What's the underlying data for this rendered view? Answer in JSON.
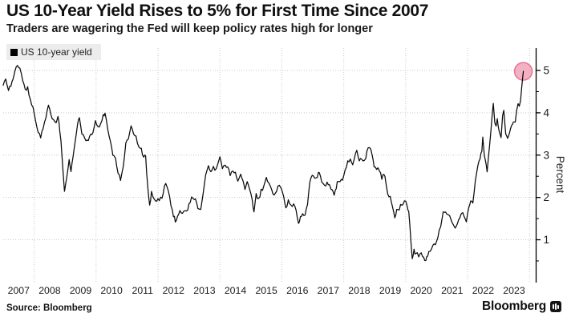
{
  "header": {
    "title": "US 10-Year Yield Rises to 5% for First Time Since 2007",
    "subtitle": "Traders are wagering the Fed will keep policy rates high for longer"
  },
  "legend": {
    "label": "US 10-year yield",
    "marker_color": "#000000"
  },
  "footer": {
    "source_label": "Source: Bloomberg",
    "brand_label": "Bloomberg"
  },
  "colors": {
    "line": "#0a0a0a",
    "grid": "#c9c9c9",
    "axis": "#000000",
    "tick_text": "#1a1a1a",
    "highlight_fill": "#ef9cb2",
    "highlight_stroke": "#e0648a"
  },
  "chart_data": {
    "type": "line",
    "title": "US 10-Year Yield Rises to 5% for First Time Since 2007",
    "subtitle": "Traders are wagering the Fed will keep policy rates high for longer",
    "ylabel": "Percent",
    "xlabel": "",
    "grid": true,
    "legend_position": "top-left",
    "legend_entries": [
      "US 10-year yield"
    ],
    "x_range": [
      2007,
      2024.2
    ],
    "y_range": [
      0,
      5.53
    ],
    "y_ticks_major": [
      1,
      2,
      3,
      4,
      5
    ],
    "y_ticks_minor": [
      0.5,
      1.5,
      2.5,
      3.5,
      4.5
    ],
    "x_tick_labels": [
      "2007",
      "2008",
      "2009",
      "2010",
      "2011",
      "2012",
      "2013",
      "2014",
      "2015",
      "2016",
      "2017",
      "2018",
      "2019",
      "2020",
      "2021",
      "2022",
      "2023"
    ],
    "x_gridline_years": [
      2008,
      2010,
      2012,
      2014,
      2016,
      2018,
      2020,
      2022,
      2024
    ],
    "highlight_point": {
      "x": 2023.8,
      "y": 4.98
    },
    "series": [
      {
        "name": "US 10-year yield",
        "color": "#000000",
        "points": [
          [
            2007.0,
            4.65
          ],
          [
            2007.08,
            4.78
          ],
          [
            2007.17,
            4.55
          ],
          [
            2007.25,
            4.66
          ],
          [
            2007.38,
            4.95
          ],
          [
            2007.46,
            5.15
          ],
          [
            2007.54,
            5.03
          ],
          [
            2007.63,
            4.75
          ],
          [
            2007.71,
            4.52
          ],
          [
            2007.79,
            4.63
          ],
          [
            2007.88,
            4.28
          ],
          [
            2007.96,
            4.1
          ],
          [
            2008.04,
            3.85
          ],
          [
            2008.13,
            3.55
          ],
          [
            2008.21,
            3.45
          ],
          [
            2008.29,
            3.6
          ],
          [
            2008.38,
            3.88
          ],
          [
            2008.46,
            4.15
          ],
          [
            2008.54,
            3.95
          ],
          [
            2008.63,
            3.85
          ],
          [
            2008.71,
            3.72
          ],
          [
            2008.77,
            3.9
          ],
          [
            2008.83,
            3.65
          ],
          [
            2008.9,
            2.95
          ],
          [
            2008.98,
            2.1
          ],
          [
            2009.06,
            2.48
          ],
          [
            2009.13,
            2.85
          ],
          [
            2009.19,
            2.62
          ],
          [
            2009.29,
            3.1
          ],
          [
            2009.4,
            3.72
          ],
          [
            2009.46,
            3.88
          ],
          [
            2009.54,
            3.52
          ],
          [
            2009.63,
            3.45
          ],
          [
            2009.71,
            3.32
          ],
          [
            2009.79,
            3.45
          ],
          [
            2009.9,
            3.52
          ],
          [
            2009.98,
            3.82
          ],
          [
            2010.06,
            3.65
          ],
          [
            2010.15,
            3.72
          ],
          [
            2010.23,
            3.92
          ],
          [
            2010.29,
            3.96
          ],
          [
            2010.38,
            3.6
          ],
          [
            2010.46,
            3.3
          ],
          [
            2010.54,
            3.0
          ],
          [
            2010.63,
            2.92
          ],
          [
            2010.71,
            2.58
          ],
          [
            2010.79,
            2.42
          ],
          [
            2010.88,
            2.7
          ],
          [
            2010.96,
            3.25
          ],
          [
            2011.04,
            3.4
          ],
          [
            2011.13,
            3.7
          ],
          [
            2011.21,
            3.48
          ],
          [
            2011.29,
            3.42
          ],
          [
            2011.38,
            3.2
          ],
          [
            2011.46,
            3.12
          ],
          [
            2011.54,
            2.95
          ],
          [
            2011.6,
            2.98
          ],
          [
            2011.67,
            2.2
          ],
          [
            2011.73,
            1.78
          ],
          [
            2011.79,
            2.12
          ],
          [
            2011.88,
            1.98
          ],
          [
            2011.96,
            1.9
          ],
          [
            2012.04,
            1.96
          ],
          [
            2012.13,
            2.0
          ],
          [
            2012.21,
            2.28
          ],
          [
            2012.25,
            2.36
          ],
          [
            2012.33,
            2.18
          ],
          [
            2012.42,
            1.82
          ],
          [
            2012.5,
            1.58
          ],
          [
            2012.56,
            1.44
          ],
          [
            2012.63,
            1.56
          ],
          [
            2012.71,
            1.72
          ],
          [
            2012.79,
            1.6
          ],
          [
            2012.88,
            1.68
          ],
          [
            2012.96,
            1.74
          ],
          [
            2013.04,
            1.92
          ],
          [
            2013.13,
            2.0
          ],
          [
            2013.21,
            1.94
          ],
          [
            2013.29,
            1.72
          ],
          [
            2013.38,
            1.7
          ],
          [
            2013.46,
            2.12
          ],
          [
            2013.54,
            2.52
          ],
          [
            2013.63,
            2.73
          ],
          [
            2013.71,
            2.58
          ],
          [
            2013.79,
            2.72
          ],
          [
            2013.88,
            2.64
          ],
          [
            2013.96,
            2.88
          ],
          [
            2014.0,
            3.0
          ],
          [
            2014.08,
            2.68
          ],
          [
            2014.17,
            2.76
          ],
          [
            2014.25,
            2.72
          ],
          [
            2014.33,
            2.56
          ],
          [
            2014.42,
            2.62
          ],
          [
            2014.5,
            2.58
          ],
          [
            2014.58,
            2.42
          ],
          [
            2014.67,
            2.52
          ],
          [
            2014.75,
            2.38
          ],
          [
            2014.81,
            2.18
          ],
          [
            2014.88,
            2.34
          ],
          [
            2014.96,
            2.22
          ],
          [
            2015.04,
            1.88
          ],
          [
            2015.1,
            1.68
          ],
          [
            2015.17,
            2.08
          ],
          [
            2015.25,
            1.94
          ],
          [
            2015.33,
            2.14
          ],
          [
            2015.42,
            2.28
          ],
          [
            2015.5,
            2.45
          ],
          [
            2015.58,
            2.32
          ],
          [
            2015.67,
            2.18
          ],
          [
            2015.75,
            2.08
          ],
          [
            2015.83,
            2.18
          ],
          [
            2015.92,
            2.28
          ],
          [
            2015.98,
            2.24
          ],
          [
            2016.06,
            2.02
          ],
          [
            2016.13,
            1.76
          ],
          [
            2016.21,
            1.92
          ],
          [
            2016.29,
            1.78
          ],
          [
            2016.38,
            1.82
          ],
          [
            2016.46,
            1.68
          ],
          [
            2016.54,
            1.4
          ],
          [
            2016.6,
            1.54
          ],
          [
            2016.67,
            1.58
          ],
          [
            2016.75,
            1.65
          ],
          [
            2016.83,
            1.82
          ],
          [
            2016.9,
            2.32
          ],
          [
            2016.98,
            2.52
          ],
          [
            2017.06,
            2.42
          ],
          [
            2017.15,
            2.5
          ],
          [
            2017.21,
            2.6
          ],
          [
            2017.29,
            2.34
          ],
          [
            2017.38,
            2.26
          ],
          [
            2017.46,
            2.34
          ],
          [
            2017.54,
            2.26
          ],
          [
            2017.63,
            2.2
          ],
          [
            2017.69,
            2.06
          ],
          [
            2017.79,
            2.34
          ],
          [
            2017.88,
            2.36
          ],
          [
            2017.96,
            2.44
          ],
          [
            2018.04,
            2.58
          ],
          [
            2018.13,
            2.84
          ],
          [
            2018.21,
            2.9
          ],
          [
            2018.29,
            2.8
          ],
          [
            2018.38,
            3.0
          ],
          [
            2018.42,
            3.1
          ],
          [
            2018.5,
            2.88
          ],
          [
            2018.58,
            2.94
          ],
          [
            2018.67,
            2.86
          ],
          [
            2018.75,
            3.06
          ],
          [
            2018.83,
            3.22
          ],
          [
            2018.92,
            3.0
          ],
          [
            2018.98,
            2.72
          ],
          [
            2019.06,
            2.68
          ],
          [
            2019.15,
            2.64
          ],
          [
            2019.23,
            2.5
          ],
          [
            2019.33,
            2.5
          ],
          [
            2019.42,
            2.08
          ],
          [
            2019.5,
            2.02
          ],
          [
            2019.58,
            1.72
          ],
          [
            2019.65,
            1.5
          ],
          [
            2019.71,
            1.68
          ],
          [
            2019.79,
            1.78
          ],
          [
            2019.88,
            1.84
          ],
          [
            2019.96,
            1.9
          ],
          [
            2020.04,
            1.84
          ],
          [
            2020.1,
            1.58
          ],
          [
            2020.17,
            1.0
          ],
          [
            2020.21,
            0.58
          ],
          [
            2020.27,
            0.75
          ],
          [
            2020.33,
            0.64
          ],
          [
            2020.42,
            0.68
          ],
          [
            2020.5,
            0.66
          ],
          [
            2020.58,
            0.56
          ],
          [
            2020.65,
            0.54
          ],
          [
            2020.71,
            0.66
          ],
          [
            2020.79,
            0.7
          ],
          [
            2020.88,
            0.84
          ],
          [
            2020.96,
            0.92
          ],
          [
            2021.04,
            1.08
          ],
          [
            2021.13,
            1.32
          ],
          [
            2021.21,
            1.7
          ],
          [
            2021.29,
            1.64
          ],
          [
            2021.38,
            1.6
          ],
          [
            2021.46,
            1.46
          ],
          [
            2021.54,
            1.32
          ],
          [
            2021.6,
            1.26
          ],
          [
            2021.67,
            1.34
          ],
          [
            2021.75,
            1.54
          ],
          [
            2021.81,
            1.64
          ],
          [
            2021.88,
            1.56
          ],
          [
            2021.96,
            1.46
          ],
          [
            2022.04,
            1.76
          ],
          [
            2022.1,
            1.96
          ],
          [
            2022.17,
            1.86
          ],
          [
            2022.25,
            2.4
          ],
          [
            2022.33,
            2.78
          ],
          [
            2022.4,
            2.92
          ],
          [
            2022.46,
            3.12
          ],
          [
            2022.49,
            3.46
          ],
          [
            2022.54,
            3.02
          ],
          [
            2022.6,
            2.78
          ],
          [
            2022.63,
            2.62
          ],
          [
            2022.71,
            3.2
          ],
          [
            2022.79,
            3.96
          ],
          [
            2022.83,
            4.22
          ],
          [
            2022.88,
            3.72
          ],
          [
            2022.92,
            3.62
          ],
          [
            2022.96,
            3.88
          ],
          [
            2023.02,
            3.52
          ],
          [
            2023.08,
            3.42
          ],
          [
            2023.13,
            3.92
          ],
          [
            2023.17,
            4.05
          ],
          [
            2023.23,
            3.46
          ],
          [
            2023.29,
            3.38
          ],
          [
            2023.35,
            3.52
          ],
          [
            2023.42,
            3.7
          ],
          [
            2023.48,
            3.82
          ],
          [
            2023.54,
            3.74
          ],
          [
            2023.58,
            4.02
          ],
          [
            2023.63,
            4.22
          ],
          [
            2023.67,
            4.12
          ],
          [
            2023.71,
            4.32
          ],
          [
            2023.75,
            4.58
          ],
          [
            2023.78,
            4.82
          ],
          [
            2023.8,
            4.98
          ]
        ]
      }
    ]
  }
}
